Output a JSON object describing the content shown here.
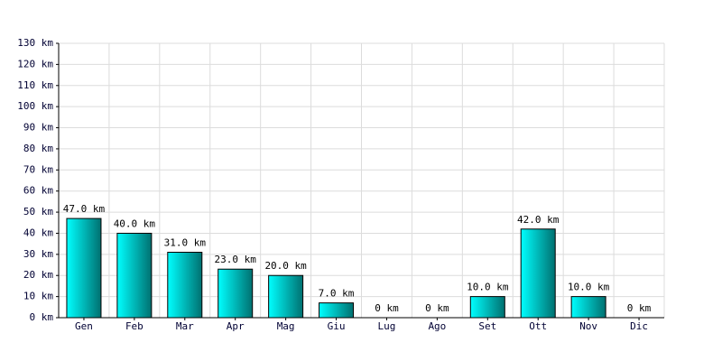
{
  "chart_data": {
    "type": "bar",
    "categories": [
      "Gen",
      "Feb",
      "Mar",
      "Apr",
      "Mag",
      "Giu",
      "Lug",
      "Ago",
      "Set",
      "Ott",
      "Nov",
      "Dic"
    ],
    "values": [
      47,
      40,
      31,
      23,
      20,
      7,
      0,
      0,
      10,
      42,
      10,
      0
    ],
    "value_labels": [
      "47.0 km",
      "40.0 km",
      "31.0 km",
      "23.0 km",
      "20.0 km",
      "7.0 km",
      "0 km",
      "0 km",
      "10.0 km",
      "42.0 km",
      "10.0 km",
      "0 km"
    ],
    "color": "#00cccc",
    "ylim": [
      0,
      130
    ],
    "yticks": [
      {
        "value": 0,
        "label": "0 km"
      },
      {
        "value": 10,
        "label": "10 km"
      },
      {
        "value": 20,
        "label": "20 km"
      },
      {
        "value": 30,
        "label": "30 km"
      },
      {
        "value": 40,
        "label": "40 km"
      },
      {
        "value": 50,
        "label": "50 km"
      },
      {
        "value": 60,
        "label": "60 km"
      },
      {
        "value": 70,
        "label": "70 km"
      },
      {
        "value": 80,
        "label": "80 km"
      },
      {
        "value": 90,
        "label": "90 km"
      },
      {
        "value": 100,
        "label": "100 km"
      },
      {
        "value": 110,
        "label": "110 km"
      },
      {
        "value": 120,
        "label": "120 km"
      },
      {
        "value": 130,
        "label": "130 km"
      }
    ],
    "grid": true
  }
}
